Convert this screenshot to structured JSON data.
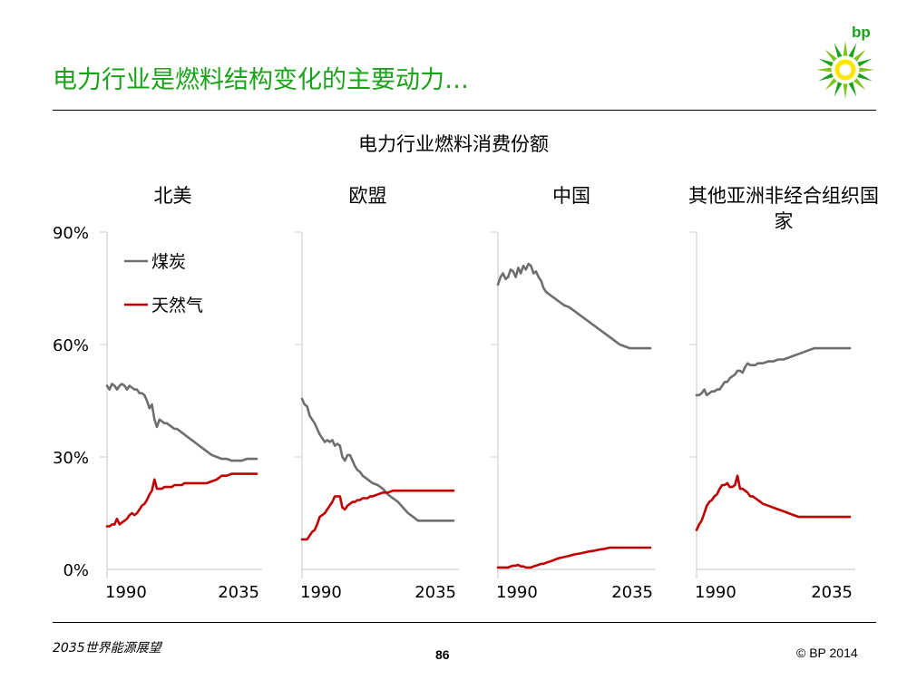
{
  "slide": {
    "title": "电力行业是燃料结构变化的主要动力…",
    "logo_text": "bp",
    "footer_left": "2035世界能源展望",
    "page_number": "86",
    "copyright": "© BP 2014"
  },
  "colors": {
    "title_green": "#1aa31a",
    "coal": "#6e6e6e",
    "gas": "#c00000",
    "axis": "#d9d9d9"
  },
  "chart_data": {
    "type": "line",
    "title": "电力行业燃料消费份额",
    "ylim": [
      0,
      90
    ],
    "y_ticks": [
      0,
      30,
      60,
      90
    ],
    "y_tick_labels": [
      "0%",
      "30%",
      "60%",
      "90%"
    ],
    "xlim": [
      1980,
      2040
    ],
    "x_tick_labels": [
      "1990",
      "2035"
    ],
    "legend": [
      "煤炭",
      "天然气"
    ],
    "legend_position": "top-left of first panel",
    "panels": [
      {
        "region": "北美",
        "series": [
          {
            "name": "煤炭",
            "x": [
              1980,
              1981,
              1982,
              1983,
              1984,
              1985,
              1986,
              1987,
              1988,
              1989,
              1990,
              1991,
              1992,
              1993,
              1994,
              1995,
              1996,
              1997,
              1998,
              1999,
              2000,
              2001,
              2002,
              2003,
              2004,
              2005,
              2006,
              2007,
              2008,
              2009,
              2010,
              2011,
              2012,
              2014,
              2016,
              2018,
              2020,
              2022,
              2024,
              2026,
              2028,
              2030,
              2032,
              2034,
              2036,
              2038,
              2040
            ],
            "values": [
              49,
              48,
              49.5,
              49,
              48,
              49,
              49.5,
              49,
              48,
              49,
              48.5,
              48,
              48,
              47,
              47,
              46.5,
              45,
              43,
              44,
              40,
              38,
              40,
              39.5,
              39,
              39,
              38.5,
              38,
              37.5,
              37.5,
              37,
              36.5,
              36,
              35.5,
              34.5,
              33.5,
              32.5,
              31.5,
              30.5,
              30,
              29.5,
              29.5,
              29,
              29,
              29,
              29.5,
              29.5,
              29.5
            ]
          },
          {
            "name": "天然气",
            "x": [
              1980,
              1981,
              1982,
              1983,
              1984,
              1985,
              1986,
              1987,
              1988,
              1989,
              1990,
              1991,
              1992,
              1993,
              1994,
              1995,
              1996,
              1997,
              1998,
              1999,
              2000,
              2001,
              2002,
              2003,
              2004,
              2005,
              2006,
              2007,
              2008,
              2009,
              2010,
              2011,
              2012,
              2014,
              2016,
              2018,
              2020,
              2022,
              2024,
              2026,
              2028,
              2030,
              2032,
              2034,
              2036,
              2038,
              2040
            ],
            "values": [
              11.5,
              11.5,
              12,
              12,
              13.5,
              12,
              12.5,
              13,
              13.5,
              14.5,
              15,
              14.5,
              15,
              16,
              17,
              17.5,
              18.5,
              20,
              21,
              24,
              21.5,
              21.5,
              21.5,
              22,
              22,
              22,
              22,
              22.5,
              22.5,
              22.5,
              22.5,
              23,
              23,
              23,
              23,
              23,
              23,
              23.5,
              24,
              25,
              25,
              25.5,
              25.5,
              25.5,
              25.5,
              25.5,
              25.5
            ]
          }
        ]
      },
      {
        "region": "欧盟",
        "series": [
          {
            "name": "煤炭",
            "x": [
              1980,
              1981,
              1982,
              1983,
              1984,
              1985,
              1986,
              1987,
              1988,
              1989,
              1990,
              1991,
              1992,
              1993,
              1994,
              1995,
              1996,
              1997,
              1998,
              1999,
              2000,
              2001,
              2002,
              2003,
              2004,
              2005,
              2006,
              2007,
              2008,
              2010,
              2012,
              2014,
              2016,
              2018,
              2020,
              2022,
              2024,
              2026,
              2028,
              2030,
              2032,
              2034,
              2036,
              2038,
              2040
            ],
            "values": [
              45.5,
              44,
              43.5,
              41,
              40,
              39,
              37.5,
              36,
              35,
              34,
              34.5,
              34,
              34.5,
              33,
              33.5,
              33,
              30,
              29,
              30.5,
              30.5,
              29,
              27.5,
              26.5,
              26,
              25,
              24.5,
              24,
              23.5,
              23,
              22.5,
              21.5,
              20,
              19,
              18,
              16.5,
              15,
              14,
              13,
              13,
              13,
              13,
              13,
              13,
              13,
              13
            ]
          },
          {
            "name": "天然气",
            "x": [
              1980,
              1981,
              1982,
              1983,
              1984,
              1985,
              1986,
              1987,
              1988,
              1989,
              1990,
              1991,
              1992,
              1993,
              1994,
              1995,
              1996,
              1997,
              1998,
              1999,
              2000,
              2001,
              2002,
              2003,
              2004,
              2005,
              2006,
              2007,
              2008,
              2010,
              2012,
              2014,
              2016,
              2018,
              2020,
              2022,
              2024,
              2026,
              2028,
              2030,
              2032,
              2034,
              2036,
              2038,
              2040
            ],
            "values": [
              8,
              8,
              8,
              9,
              10,
              10.5,
              12,
              14,
              14.5,
              15,
              16,
              17,
              18,
              19.5,
              19.5,
              19.5,
              16.5,
              16,
              17,
              17.5,
              18,
              18,
              18.5,
              18.5,
              19,
              19,
              19,
              19.5,
              19.5,
              20,
              20.5,
              20.5,
              21,
              21,
              21,
              21,
              21,
              21,
              21,
              21,
              21,
              21,
              21,
              21,
              21
            ]
          }
        ]
      },
      {
        "region": "中国",
        "series": [
          {
            "name": "煤炭",
            "x": [
              1980,
              1981,
              1982,
              1983,
              1984,
              1985,
              1986,
              1987,
              1988,
              1989,
              1990,
              1991,
              1992,
              1993,
              1994,
              1995,
              1996,
              1997,
              1998,
              1999,
              2000,
              2001,
              2002,
              2003,
              2004,
              2005,
              2006,
              2008,
              2010,
              2012,
              2014,
              2016,
              2018,
              2020,
              2022,
              2024,
              2026,
              2028,
              2030,
              2032,
              2034,
              2036,
              2038,
              2040
            ],
            "values": [
              76,
              78,
              79,
              77.5,
              78,
              80,
              79.5,
              78,
              80.5,
              79,
              81,
              80,
              81.5,
              81,
              79,
              79.5,
              78,
              77,
              75,
              74,
              73.5,
              73,
              72.5,
              72,
              71.5,
              71,
              70.5,
              70,
              69,
              68,
              67,
              66,
              65,
              64,
              63,
              62,
              61,
              60,
              59.5,
              59,
              59,
              59,
              59,
              59
            ]
          },
          {
            "name": "天然气",
            "x": [
              1980,
              1981,
              1982,
              1983,
              1984,
              1985,
              1986,
              1987,
              1988,
              1989,
              1990,
              1991,
              1992,
              1993,
              1994,
              1995,
              1996,
              1997,
              1998,
              1999,
              2000,
              2001,
              2002,
              2004,
              2006,
              2008,
              2010,
              2012,
              2014,
              2016,
              2018,
              2020,
              2022,
              2024,
              2026,
              2028,
              2030,
              2032,
              2034,
              2036,
              2038,
              2040
            ],
            "values": [
              0.5,
              0.5,
              0.5,
              0.5,
              0.5,
              0.8,
              1,
              1,
              1.2,
              0.8,
              0.8,
              0.5,
              0.5,
              0.5,
              0.8,
              1,
              1.2,
              1.5,
              1.5,
              1.8,
              2,
              2.2,
              2.5,
              3,
              3.3,
              3.6,
              4,
              4.2,
              4.5,
              4.8,
              5,
              5.3,
              5.5,
              5.8,
              5.8,
              5.8,
              5.8,
              5.8,
              5.8,
              5.8,
              5.8,
              5.8
            ]
          }
        ]
      },
      {
        "region": "其他亚洲非经合组织国家",
        "series": [
          {
            "name": "煤炭",
            "x": [
              1980,
              1981,
              1982,
              1983,
              1984,
              1985,
              1986,
              1987,
              1988,
              1989,
              1990,
              1991,
              1992,
              1993,
              1994,
              1995,
              1996,
              1997,
              1998,
              1999,
              2000,
              2001,
              2002,
              2003,
              2004,
              2005,
              2006,
              2008,
              2010,
              2012,
              2014,
              2016,
              2018,
              2020,
              2022,
              2024,
              2026,
              2028,
              2030,
              2032,
              2034,
              2036,
              2038,
              2040
            ],
            "values": [
              46.5,
              46.5,
              47,
              48,
              46.5,
              47,
              47.5,
              47.5,
              48,
              48,
              49,
              50,
              50,
              51,
              51.5,
              52,
              53,
              53,
              52.5,
              54,
              55,
              54.5,
              54.5,
              54.5,
              55,
              55,
              55,
              55.5,
              55.5,
              56,
              56,
              56.5,
              57,
              57.5,
              58,
              58.5,
              59,
              59,
              59,
              59,
              59,
              59,
              59,
              59
            ]
          },
          {
            "name": "天然气",
            "x": [
              1980,
              1981,
              1982,
              1983,
              1984,
              1985,
              1986,
              1987,
              1988,
              1989,
              1990,
              1991,
              1992,
              1993,
              1994,
              1995,
              1996,
              1997,
              1998,
              1999,
              2000,
              2001,
              2002,
              2003,
              2004,
              2005,
              2006,
              2008,
              2010,
              2012,
              2014,
              2016,
              2018,
              2020,
              2022,
              2024,
              2026,
              2028,
              2030,
              2032,
              2034,
              2036,
              2038,
              2040
            ],
            "values": [
              10.5,
              12,
              13,
              15,
              17,
              18,
              18.5,
              19.5,
              20,
              21.5,
              22.5,
              22.5,
              23,
              22,
              22,
              22.5,
              25,
              21.5,
              21.5,
              21,
              20.5,
              19.5,
              19.5,
              19,
              18.5,
              18,
              17.5,
              17,
              16.5,
              16,
              15.5,
              15,
              14.5,
              14,
              14,
              14,
              14,
              14,
              14,
              14,
              14,
              14,
              14,
              14
            ]
          }
        ]
      }
    ]
  }
}
